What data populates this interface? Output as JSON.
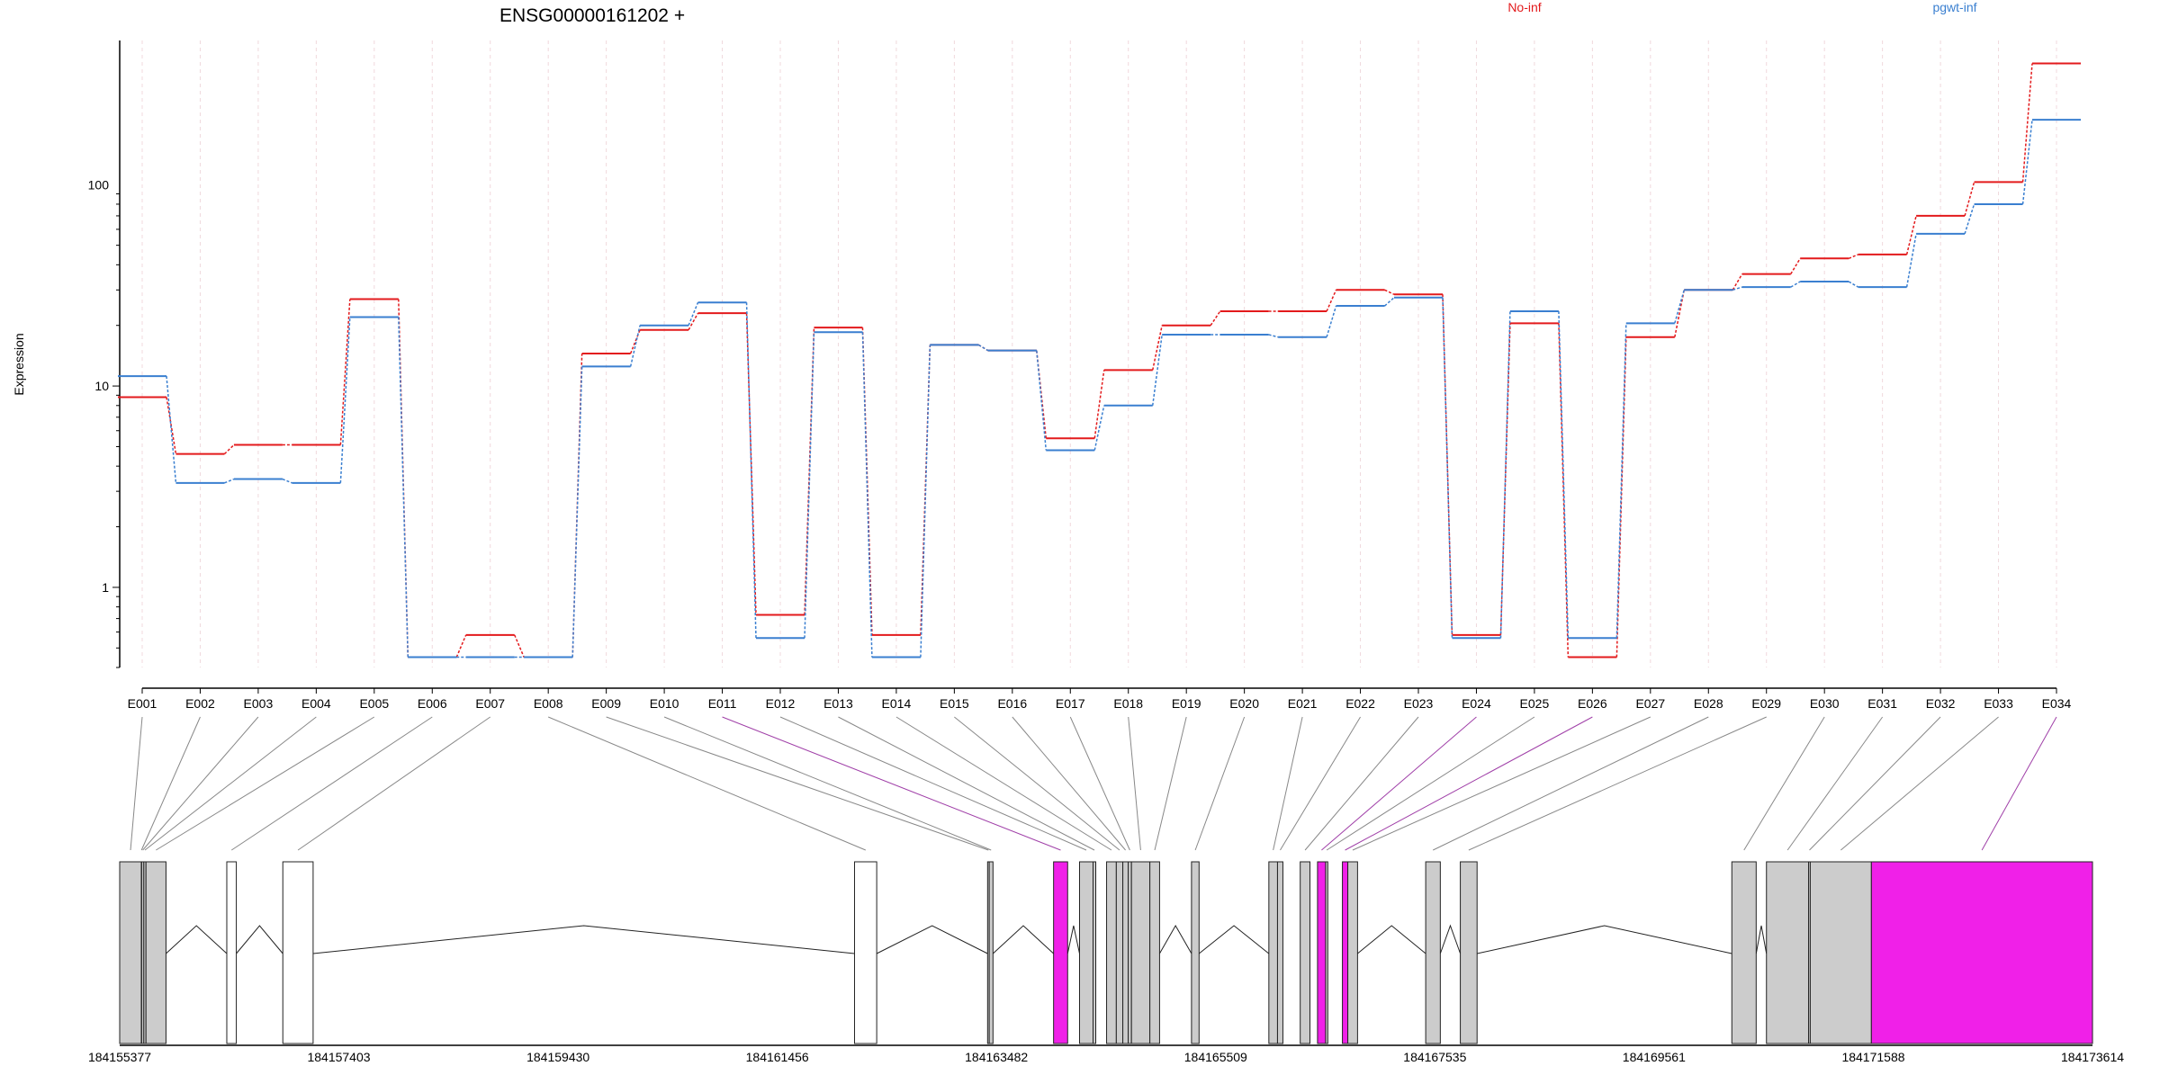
{
  "chart_data": {
    "type": "line",
    "title": "ENSG00000161202 +",
    "ylabel": "Expression",
    "xlabel": "",
    "y_scale": "log",
    "ylim": [
      0.4,
      520
    ],
    "y_ticks": [
      {
        "value": 1,
        "label": "1"
      },
      {
        "value": 10,
        "label": "10"
      },
      {
        "value": 100,
        "label": "100"
      }
    ],
    "categories": [
      "E001",
      "E002",
      "E003",
      "E004",
      "E005",
      "E006",
      "E007",
      "E008",
      "E009",
      "E010",
      "E011",
      "E012",
      "E013",
      "E014",
      "E015",
      "E016",
      "E017",
      "E018",
      "E019",
      "E020",
      "E021",
      "E022",
      "E023",
      "E024",
      "E025",
      "E026",
      "E027",
      "E028",
      "E029",
      "E030",
      "E031",
      "E032",
      "E033",
      "E034"
    ],
    "series": [
      {
        "name": "No-inf",
        "color": "#e31a1c",
        "values": [
          8.8,
          4.6,
          5.1,
          5.1,
          27,
          0.45,
          0.58,
          0.45,
          14.5,
          19,
          23,
          0.73,
          19.5,
          0.58,
          16,
          15,
          5.5,
          12,
          20,
          23.5,
          23.5,
          30,
          28.5,
          0.58,
          20.5,
          0.45,
          17.5,
          30,
          36,
          43,
          45,
          70,
          103,
          400
        ]
      },
      {
        "name": "pgwt-inf",
        "color": "#3a7fd0",
        "values": [
          11.2,
          3.3,
          3.45,
          3.3,
          22,
          0.45,
          0.45,
          0.45,
          12.5,
          20,
          26,
          0.56,
          18.5,
          0.45,
          16,
          15,
          4.8,
          8,
          18,
          18,
          17.5,
          25,
          27.5,
          0.56,
          23.5,
          0.56,
          20.5,
          30,
          31,
          33,
          31,
          57,
          80,
          210
        ]
      }
    ],
    "legend_placement": "top",
    "grid": "vertical-dashed",
    "gene_axis": {
      "min": 184155377,
      "max": 184173614,
      "ticks": [
        184155377,
        184157403,
        184159430,
        184161456,
        184163482,
        184165509,
        184167535,
        184169561,
        184171588,
        184173614
      ],
      "highlight_color": "#f020e8",
      "exon_color": "#cccccc",
      "exons": [
        {
          "id": "E001",
          "start": 184155377,
          "end": 184155577,
          "highlight": false
        },
        {
          "id": "E002",
          "start": 184155577,
          "end": 184155580,
          "highlight": false
        },
        {
          "id": "E003",
          "start": 184155580,
          "end": 184155600,
          "highlight": false
        },
        {
          "id": "E004",
          "start": 184155600,
          "end": 184155620,
          "highlight": false
        },
        {
          "id": "E005",
          "start": 184155620,
          "end": 184155805,
          "highlight": false
        },
        {
          "id": "E006",
          "start": 184156367,
          "end": 184156455,
          "highlight": false,
          "hollow": true
        },
        {
          "id": "E007",
          "start": 184156885,
          "end": 184157165,
          "highlight": false,
          "hollow": true
        },
        {
          "id": "E008",
          "start": 184162170,
          "end": 184162375,
          "highlight": false,
          "hollow": true
        },
        {
          "id": "E009",
          "start": 184163400,
          "end": 184163415,
          "highlight": false
        },
        {
          "id": "E010",
          "start": 184163415,
          "end": 184163450,
          "highlight": false
        },
        {
          "id": "E011",
          "start": 184164010,
          "end": 184164140,
          "highlight": true
        },
        {
          "id": "E012",
          "start": 184164250,
          "end": 184164375,
          "highlight": false
        },
        {
          "id": "E013",
          "start": 184164375,
          "end": 184164400,
          "highlight": false
        },
        {
          "id": "E014",
          "start": 184164500,
          "end": 184164590,
          "highlight": false
        },
        {
          "id": "E015",
          "start": 184164590,
          "end": 184164650,
          "highlight": false
        },
        {
          "id": "E016",
          "start": 184164650,
          "end": 184164700,
          "highlight": false
        },
        {
          "id": "E017",
          "start": 184164700,
          "end": 184164730,
          "highlight": false
        },
        {
          "id": "E018",
          "start": 184164730,
          "end": 184164900,
          "highlight": false
        },
        {
          "id": "E019",
          "start": 184164900,
          "end": 184164990,
          "highlight": false
        },
        {
          "id": "E020",
          "start": 184165285,
          "end": 184165355,
          "highlight": false
        },
        {
          "id": "E021",
          "start": 184166000,
          "end": 184166080,
          "highlight": false
        },
        {
          "id": "E022",
          "start": 184166080,
          "end": 184166130,
          "highlight": false
        },
        {
          "id": "E023",
          "start": 184166290,
          "end": 184166380,
          "highlight": false
        },
        {
          "id": "E024",
          "start": 184166450,
          "end": 184166525,
          "highlight": true
        },
        {
          "id": "E025",
          "start": 184166525,
          "end": 184166545,
          "highlight": false
        },
        {
          "id": "E026",
          "start": 184166680,
          "end": 184166730,
          "highlight": true
        },
        {
          "id": "E027",
          "start": 184166730,
          "end": 184166820,
          "highlight": false
        },
        {
          "id": "E028",
          "start": 184167450,
          "end": 184167585,
          "highlight": false
        },
        {
          "id": "E029",
          "start": 184167770,
          "end": 184167925,
          "highlight": false
        },
        {
          "id": "E030",
          "start": 184170280,
          "end": 184170505,
          "highlight": false
        },
        {
          "id": "E031",
          "start": 184170600,
          "end": 184170990,
          "highlight": false
        },
        {
          "id": "E032",
          "start": 184170990,
          "end": 184171005,
          "highlight": false
        },
        {
          "id": "E033",
          "start": 184171005,
          "end": 184171570,
          "highlight": false
        },
        {
          "id": "E034",
          "start": 184171570,
          "end": 184173614,
          "highlight": true
        }
      ],
      "introns": [
        [
          184155805,
          184156367
        ],
        [
          184156455,
          184156885
        ],
        [
          184157165,
          184162170
        ],
        [
          184162375,
          184163400
        ],
        [
          184163450,
          184164010
        ],
        [
          184164140,
          184164250
        ],
        [
          184164990,
          184165285
        ],
        [
          184165355,
          184166000
        ],
        [
          184166820,
          184167450
        ],
        [
          184167585,
          184167770
        ],
        [
          184167925,
          184170280
        ],
        [
          184170505,
          184170600
        ]
      ]
    }
  }
}
